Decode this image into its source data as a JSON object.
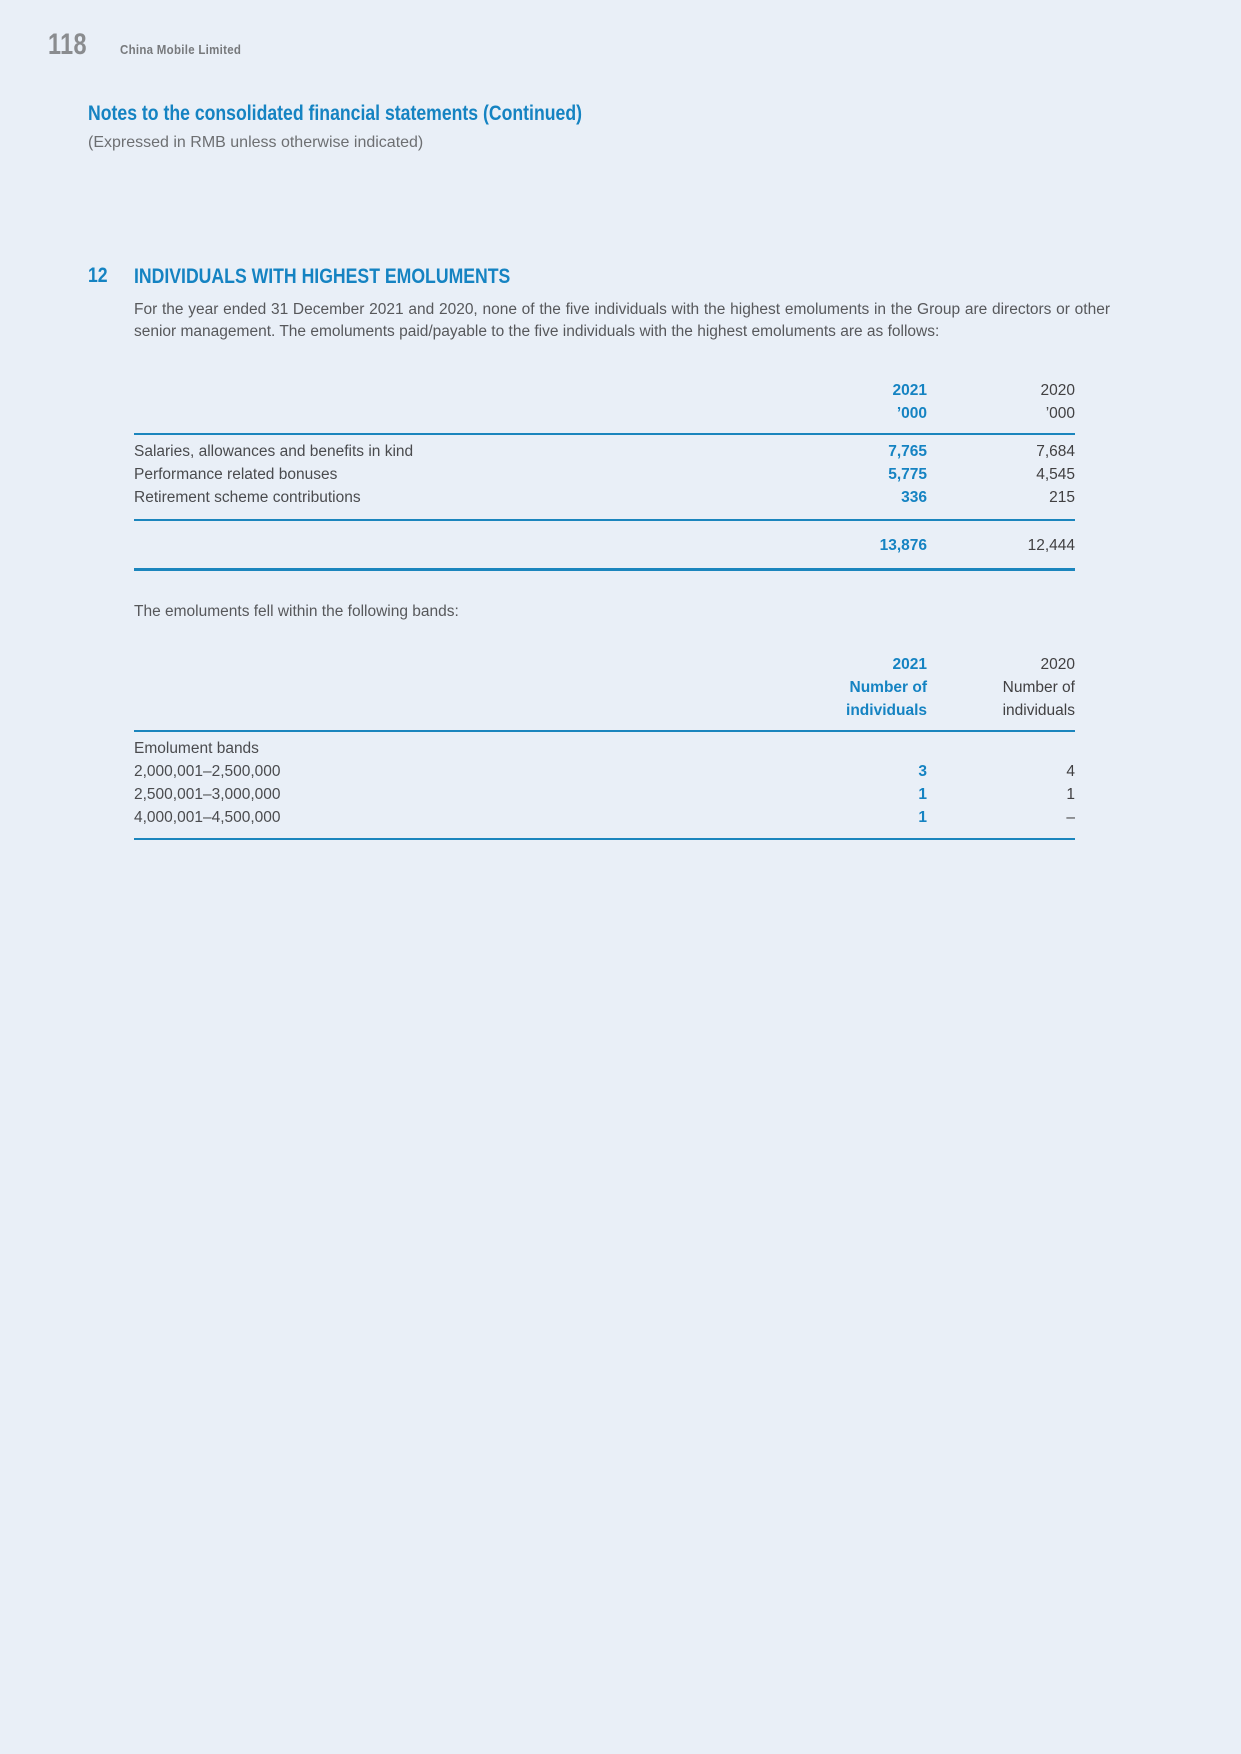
{
  "header": {
    "page_number": "118",
    "company": "China Mobile Limited"
  },
  "doc": {
    "title": "Notes to the consolidated financial statements (Continued)",
    "subtitle": "(Expressed in RMB unless otherwise indicated)"
  },
  "section": {
    "number": "12",
    "heading": "INDIVIDUALS WITH HIGHEST EMOLUMENTS",
    "intro": "For the year ended 31 December 2021 and 2020, none of the five individuals with the highest emoluments in the Group are directors or other senior management. The emoluments paid/payable to the five individuals with the highest emoluments are as follows:",
    "bands_intro": "The emoluments fell within the following bands:"
  },
  "emoluments_table": {
    "head": {
      "year_2021": "2021",
      "year_2020": "2020",
      "unit_2021": "’000",
      "unit_2020": "’000"
    },
    "rows": [
      {
        "label": "Salaries, allowances and benefits in kind",
        "y2021": "7,765",
        "y2020": "7,684"
      },
      {
        "label": "Performance related bonuses",
        "y2021": "5,775",
        "y2020": "4,545"
      },
      {
        "label": "Retirement scheme contributions",
        "y2021": "336",
        "y2020": "215"
      }
    ],
    "total": {
      "y2021": "13,876",
      "y2020": "12,444"
    }
  },
  "bands_table": {
    "head": {
      "year_2021": "2021",
      "year_2020": "2020",
      "sub1_2021": "Number of",
      "sub2_2021": "individuals",
      "sub1_2020": "Number of",
      "sub2_2020": "individuals"
    },
    "group_label": "Emolument bands",
    "rows": [
      {
        "band": "2,000,001–2,500,000",
        "y2021": "3",
        "y2020": "4"
      },
      {
        "band": "2,500,001–3,000,000",
        "y2021": "1",
        "y2020": "1"
      },
      {
        "band": "4,000,001–4,500,000",
        "y2021": "1",
        "y2020": "–"
      }
    ]
  },
  "colors": {
    "accent_blue": "#1583c2",
    "rule_blue": "#1b85bd",
    "body_gray": "#57585b",
    "dark_text": "#414042",
    "header_gray": "#8a8c8f",
    "page_bg": "#e9eff7"
  }
}
